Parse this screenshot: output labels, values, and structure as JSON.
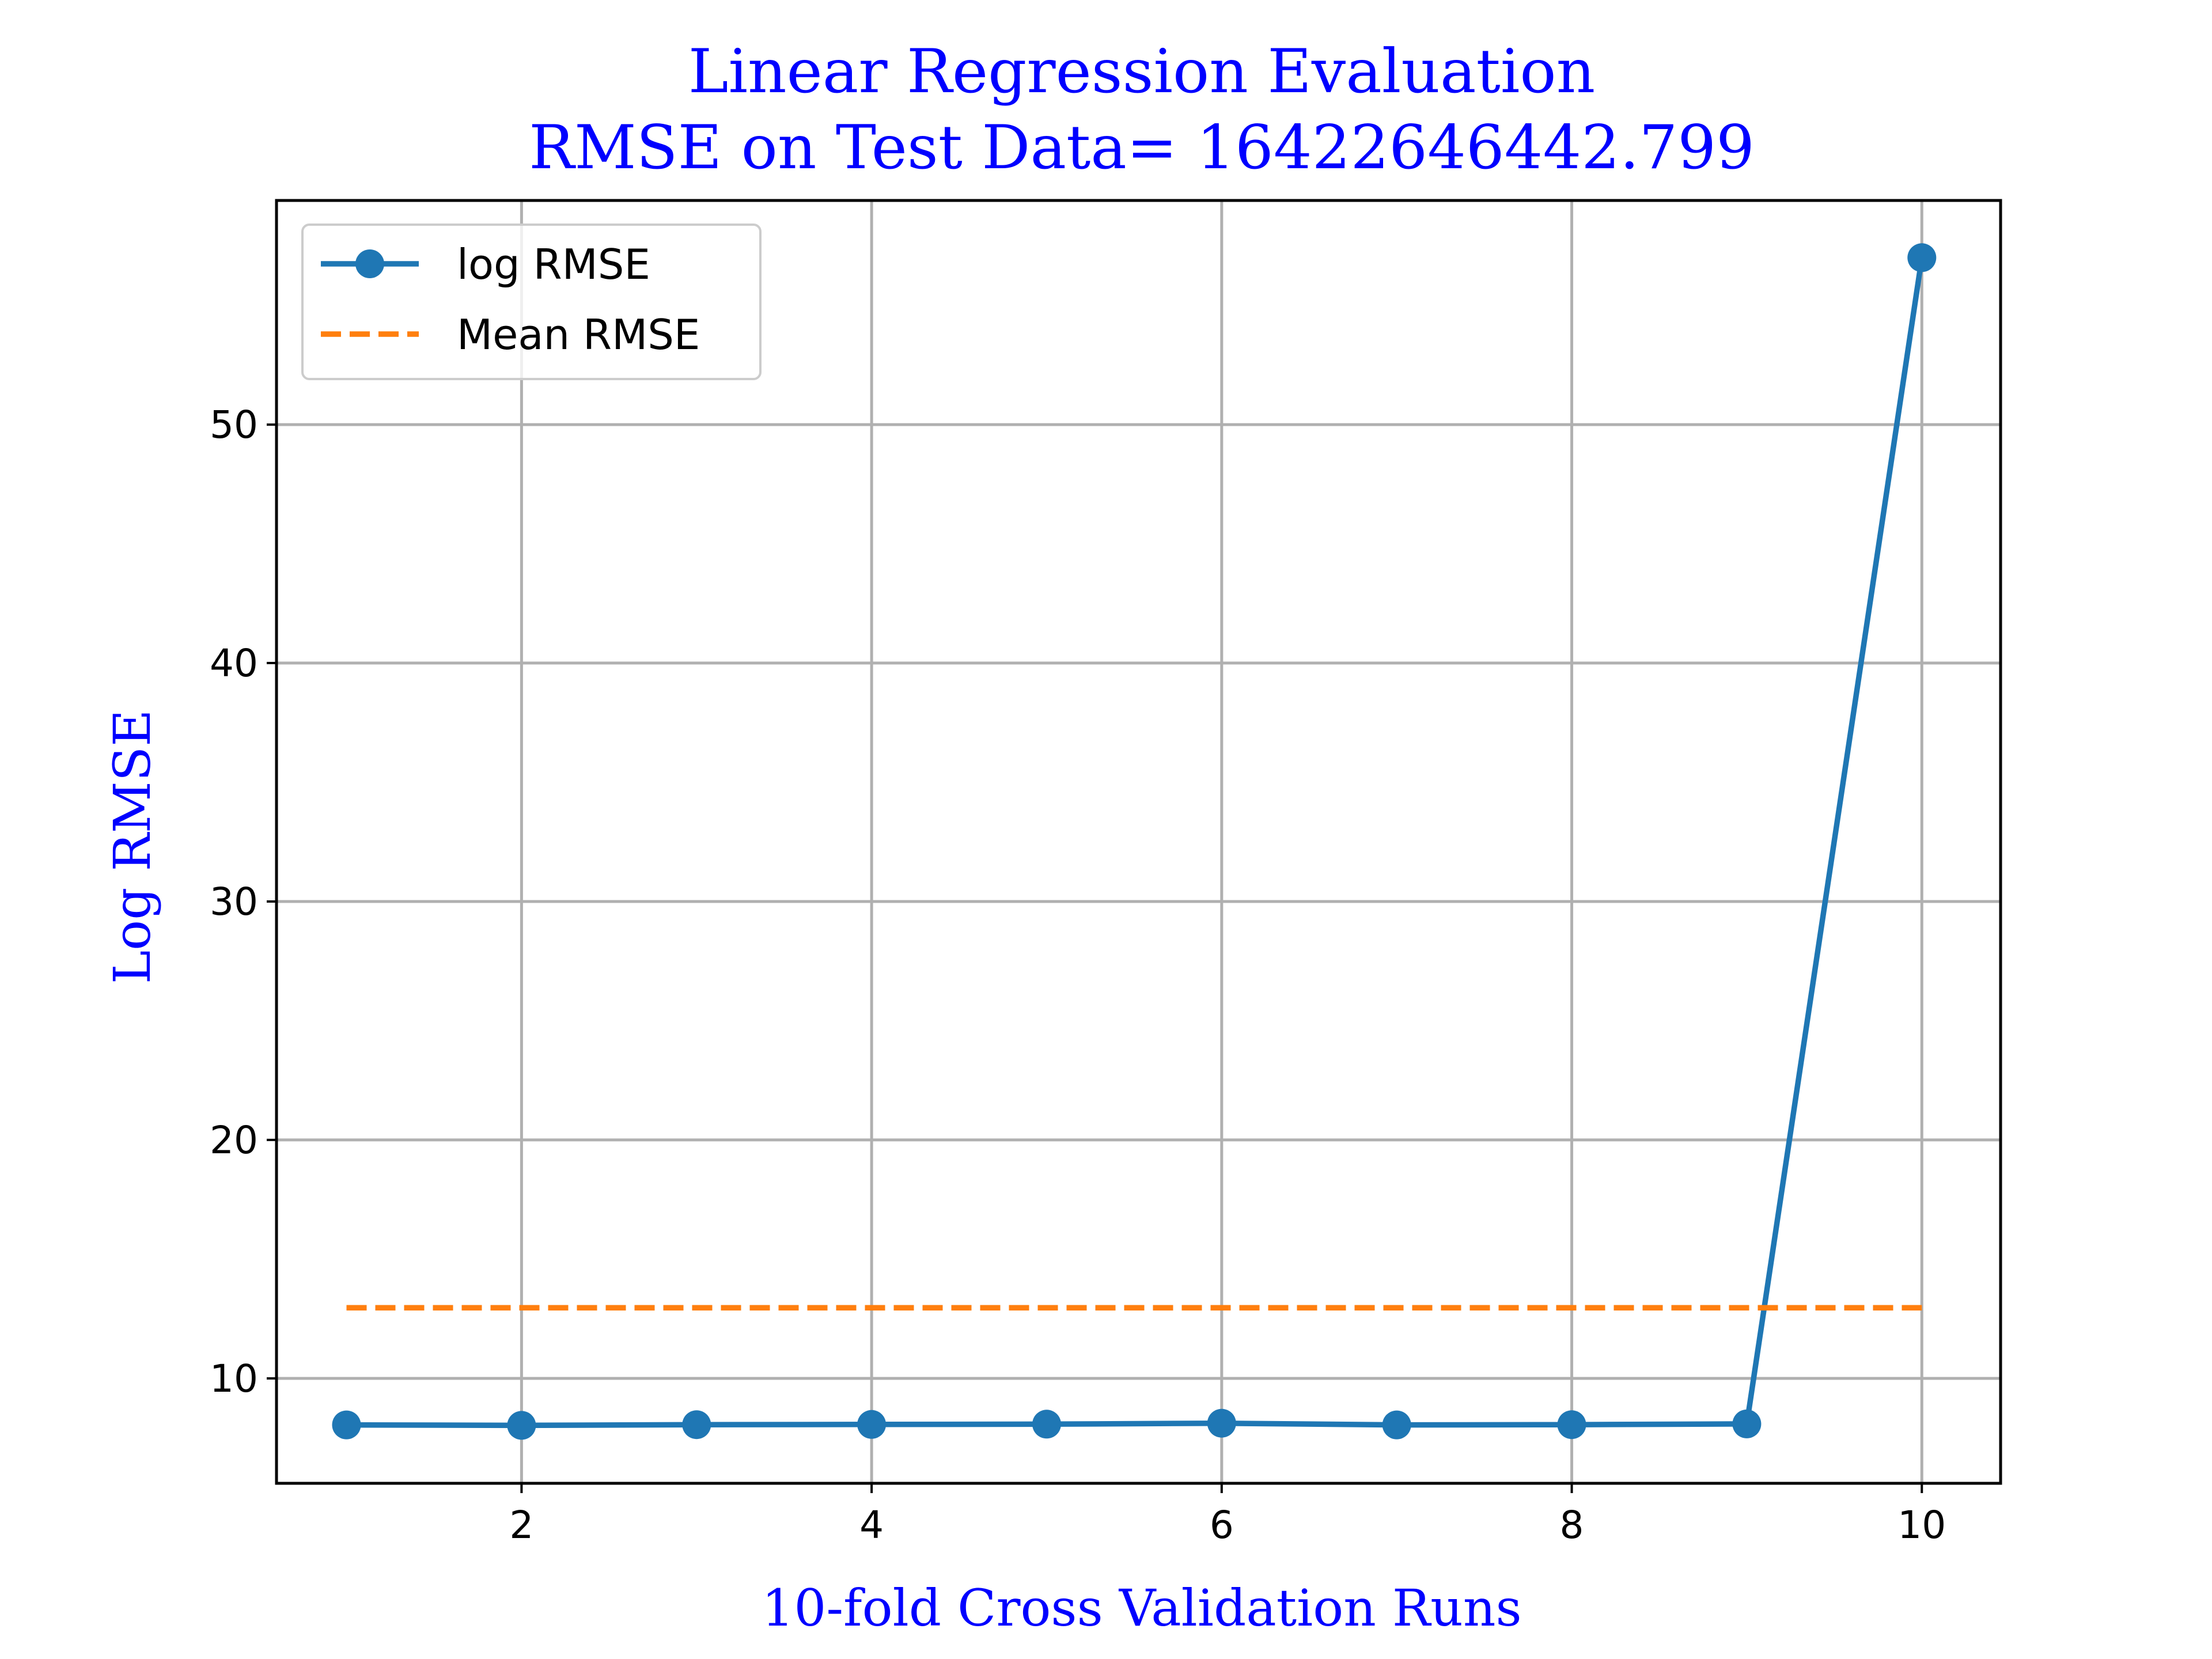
{
  "chart_data": {
    "type": "line",
    "title_line1": "Linear Regression Evaluation",
    "title_line2": "RMSE on Test Data= 16422646442.799",
    "xlabel": "10-fold Cross Validation Runs",
    "ylabel": "Log RMSE",
    "xlim": [
      0.6,
      10.45
    ],
    "ylim": [
      5.6,
      59.4
    ],
    "xticks": [
      2,
      4,
      6,
      8,
      10
    ],
    "yticks": [
      10,
      20,
      30,
      40,
      50
    ],
    "grid": true,
    "legend_position": "top-left",
    "series": [
      {
        "name": "log RMSE",
        "style": "line-with-markers",
        "color": "#1f77b4",
        "x": [
          1,
          2,
          3,
          4,
          5,
          6,
          7,
          8,
          9,
          10
        ],
        "values": [
          8.05,
          8.03,
          8.06,
          8.07,
          8.08,
          8.12,
          8.05,
          8.06,
          8.09,
          57.0
        ]
      },
      {
        "name": "Mean RMSE",
        "style": "dashed",
        "color": "#ff7f0e",
        "x": [
          1,
          10
        ],
        "values": [
          12.96,
          12.96
        ]
      }
    ],
    "colors": {
      "title": "#0000ff",
      "axis_label": "#0000ff",
      "grid": "#b0b0b0",
      "frame": "#000000"
    }
  }
}
